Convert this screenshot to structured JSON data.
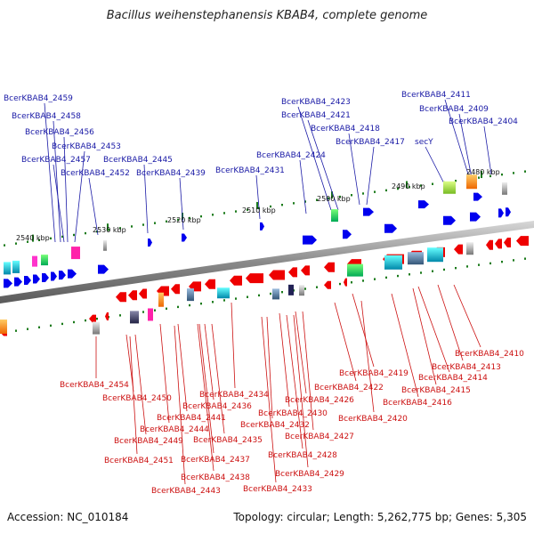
{
  "title": "Bacillus weihenstephanensis KBAB4, complete genome",
  "footer": {
    "accession": "Accession: NC_010184",
    "topology": "Topology: circular; Length: 5,262,775 bp; Genes: 5,305"
  },
  "scale_labels": [
    "2540 kbp",
    "2530 kbp",
    "2520 kbp",
    "2510 kbp",
    "2500 kbp",
    "2490 kbp",
    "2480 kbp"
  ],
  "top_labels": [
    "BcerKBAB4_2459",
    "BcerKBAB4_2458",
    "BcerKBAB4_2456",
    "BcerKBAB4_2453",
    "BcerKBAB4_2457",
    "BcerKBAB4_2452",
    "BcerKBAB4_2445",
    "BcerKBAB4_2439",
    "BcerKBAB4_2431",
    "BcerKBAB4_2424",
    "BcerKBAB4_2423",
    "BcerKBAB4_2421",
    "BcerKBAB4_2418",
    "BcerKBAB4_2417",
    "secY",
    "BcerKBAB4_2411",
    "BcerKBAB4_2409",
    "BcerKBAB4_2404"
  ],
  "bottom_labels": [
    "BcerKBAB4_2410",
    "BcerKBAB4_2413",
    "BcerKBAB4_2414",
    "BcerKBAB4_2419",
    "BcerKBAB4_2415",
    "BcerKBAB4_2422",
    "BcerKBAB4_2416",
    "BcerKBAB4_2454",
    "BcerKBAB4_2434",
    "BcerKBAB4_2426",
    "BcerKBAB4_2450",
    "BcerKBAB4_2436",
    "BcerKBAB4_2430",
    "BcerKBAB4_2420",
    "BcerKBAB4_2441",
    "BcerKBAB4_2432",
    "BcerKBAB4_2444",
    "BcerKBAB4_2427",
    "BcerKBAB4_2449",
    "BcerKBAB4_2435",
    "BcerKBAB4_2428",
    "BcerKBAB4_2451",
    "BcerKBAB4_2437",
    "BcerKBAB4_2429",
    "BcerKBAB4_2438",
    "BcerKBAB4_2443",
    "BcerKBAB4_2433"
  ],
  "colors": {
    "forward_gene": "#0000ee",
    "reverse_gene": "#ee0000",
    "top_label": "#1a1aa6",
    "bottom_label": "#cc1111",
    "backbone": "#999999",
    "tick": "#1a7a1a"
  }
}
